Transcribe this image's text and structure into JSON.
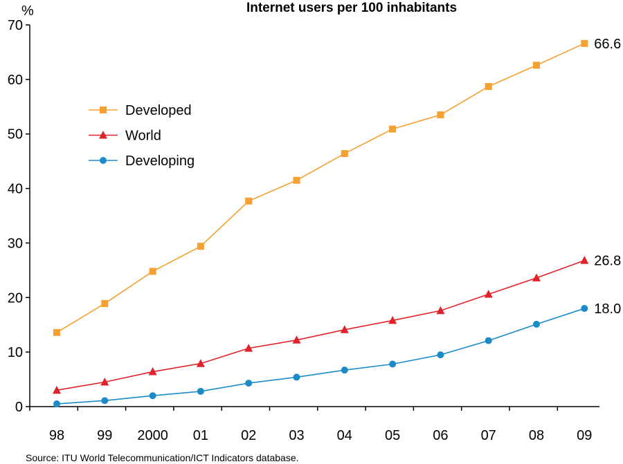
{
  "chart_data": {
    "type": "line",
    "title": "Internet users per 100 inhabitants",
    "ylabel": "%",
    "xlabel": "",
    "ylim": [
      0,
      70
    ],
    "yticks": [
      0,
      10,
      20,
      30,
      40,
      50,
      60,
      70
    ],
    "categories": [
      "98",
      "99",
      "2000",
      "01",
      "02",
      "03",
      "04",
      "05",
      "06",
      "07",
      "08",
      "09"
    ],
    "legend_position": "top-left",
    "grid": false,
    "series": [
      {
        "name": "Developed",
        "color": "#f5a030",
        "marker": "square",
        "values": [
          13.6,
          18.9,
          24.8,
          29.4,
          37.7,
          41.5,
          46.4,
          50.9,
          53.5,
          58.7,
          62.6,
          66.6
        ],
        "end_label": "66.6"
      },
      {
        "name": "World",
        "color": "#e0222a",
        "marker": "triangle",
        "values": [
          3.0,
          4.5,
          6.4,
          7.9,
          10.7,
          12.2,
          14.1,
          15.8,
          17.6,
          20.6,
          23.6,
          26.8
        ],
        "end_label": "26.8"
      },
      {
        "name": "Developing",
        "color": "#1b8ac8",
        "marker": "circle",
        "values": [
          0.5,
          1.1,
          2.0,
          2.8,
          4.3,
          5.4,
          6.7,
          7.8,
          9.5,
          12.1,
          15.1,
          18.0
        ],
        "end_label": "18.0"
      }
    ],
    "source": "Source: ITU World Telecommunication/ICT Indicators database."
  }
}
